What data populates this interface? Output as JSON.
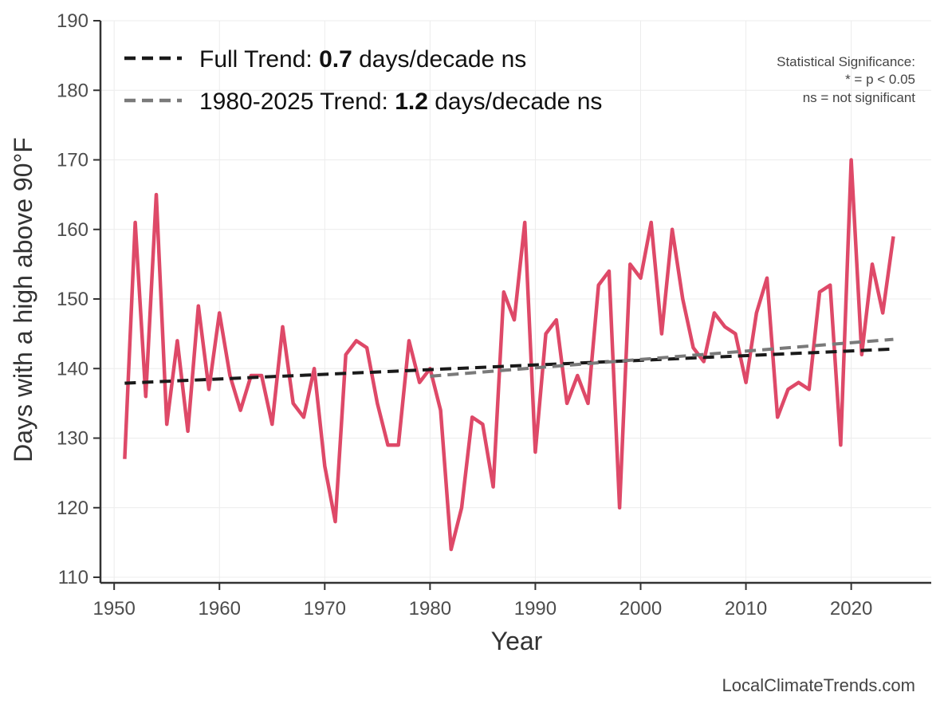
{
  "chart_data": {
    "type": "line",
    "xlabel": "Year",
    "ylabel": "Days with a high above 90°F",
    "xlim": [
      1948.7,
      2027.6
    ],
    "ylim": [
      109.2,
      190
    ],
    "x_ticks": [
      1950,
      1960,
      1970,
      1980,
      1990,
      2000,
      2010,
      2020
    ],
    "y_ticks": [
      110,
      120,
      130,
      140,
      150,
      160,
      170,
      180,
      190
    ],
    "grid": true,
    "legend_placement": "top-left",
    "series": [
      {
        "color": "#de4968",
        "x": [
          1951,
          1952,
          1953,
          1954,
          1955,
          1956,
          1957,
          1958,
          1959,
          1960,
          1961,
          1962,
          1963,
          1964,
          1965,
          1966,
          1967,
          1968,
          1969,
          1970,
          1971,
          1972,
          1973,
          1974,
          1975,
          1976,
          1977,
          1978,
          1979,
          1980,
          1981,
          1982,
          1983,
          1984,
          1985,
          1986,
          1987,
          1988,
          1989,
          1990,
          1991,
          1992,
          1993,
          1994,
          1995,
          1996,
          1997,
          1998,
          1999,
          2000,
          2001,
          2002,
          2003,
          2004,
          2005,
          2006,
          2007,
          2008,
          2009,
          2010,
          2011,
          2012,
          2013,
          2014,
          2015,
          2016,
          2017,
          2018,
          2019,
          2020,
          2021,
          2022,
          2023,
          2024
        ],
        "values": [
          127,
          161,
          136,
          165,
          132,
          144,
          131,
          149,
          137,
          148,
          139,
          134,
          139,
          139,
          132,
          146,
          135,
          133,
          140,
          126,
          118,
          142,
          144,
          143,
          135,
          129,
          129,
          144,
          138,
          140,
          134,
          114,
          120,
          133,
          132,
          123,
          151,
          147,
          161,
          128,
          145,
          147,
          135,
          139,
          135,
          152,
          154,
          120,
          155,
          153,
          161,
          145,
          160,
          150,
          143,
          141,
          148,
          146,
          145,
          138,
          148,
          153,
          133,
          137,
          138,
          137,
          151,
          152,
          129,
          170,
          142,
          155,
          148,
          159
        ]
      }
    ],
    "trends": [
      {
        "label_prefix": "Full Trend: ",
        "value": "0.7",
        "label_suffix": " days/decade ns",
        "color": "#1a1a1a",
        "x": [
          1951,
          2024
        ],
        "y": [
          137.9,
          142.8
        ]
      },
      {
        "label_prefix": "1980-2025 Trend: ",
        "value": "1.2",
        "label_suffix": " days/decade ns",
        "color": "#7a7a7a",
        "x": [
          1980,
          2024
        ],
        "y": [
          138.9,
          144.2
        ]
      }
    ],
    "annotations": {
      "significance": [
        "Statistical Significance:",
        "* = p < 0.05",
        "ns = not significant"
      ],
      "credit": "LocalClimateTrends.com"
    }
  }
}
